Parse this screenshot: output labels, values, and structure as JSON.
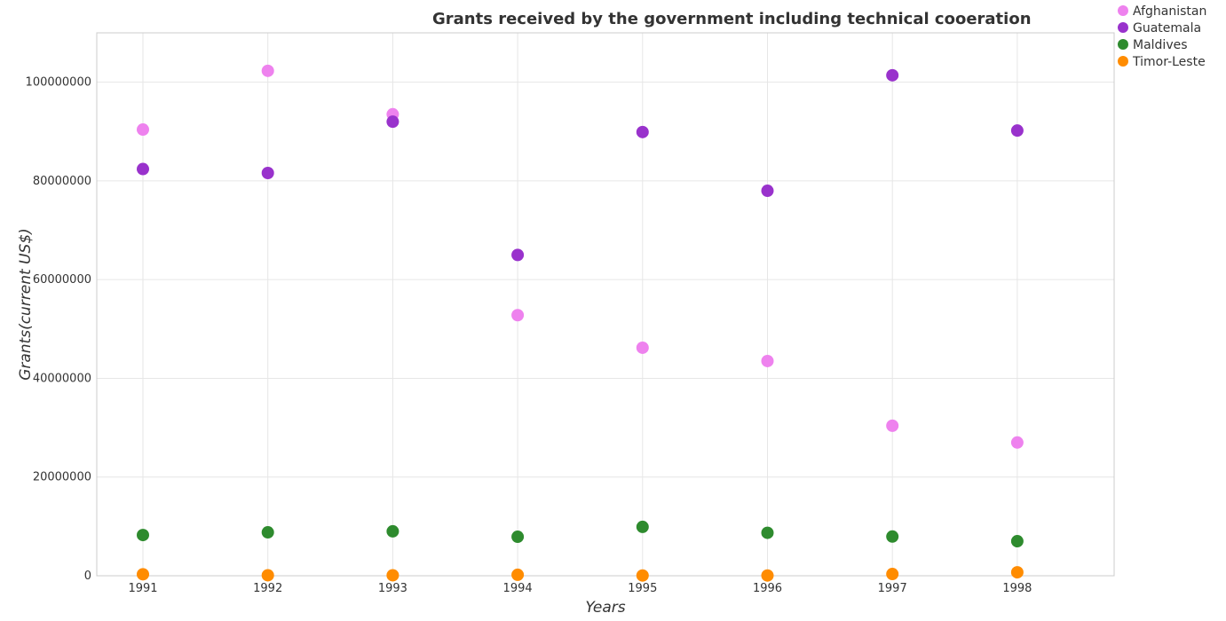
{
  "chart_data": {
    "type": "scatter",
    "title": "Grants received by the government including technical cooeration",
    "xlabel": "Years",
    "ylabel": "Grants(current US$)",
    "categories": [
      "1991",
      "1992",
      "1993",
      "1994",
      "1995",
      "1996",
      "1997",
      "1998"
    ],
    "ylim": [
      0,
      110000000
    ],
    "yticks": [
      0,
      20000000,
      40000000,
      60000000,
      80000000,
      100000000
    ],
    "ytick_labels": [
      "0",
      "20000000",
      "40000000",
      "60000000",
      "80000000",
      "100000000"
    ],
    "grid": true,
    "legend_position": "top-right",
    "series": [
      {
        "name": "Afghanistan",
        "color": "#ee82ee",
        "values": [
          90400000,
          102300000,
          93500000,
          52800000,
          46200000,
          43500000,
          30400000,
          27000000
        ]
      },
      {
        "name": "Guatemala",
        "color": "#9932cc",
        "values": [
          82400000,
          81600000,
          92000000,
          65000000,
          89900000,
          78000000,
          101400000,
          90200000
        ]
      },
      {
        "name": "Maldives",
        "color": "#2e8b2e",
        "values": [
          8250000,
          8800000,
          9000000,
          7900000,
          9900000,
          8700000,
          7950000,
          7000000
        ]
      },
      {
        "name": "Timor-Leste",
        "color": "#ff8c00",
        "values": [
          300000,
          100000,
          100000,
          200000,
          50000,
          50000,
          350000,
          700000
        ]
      }
    ]
  }
}
